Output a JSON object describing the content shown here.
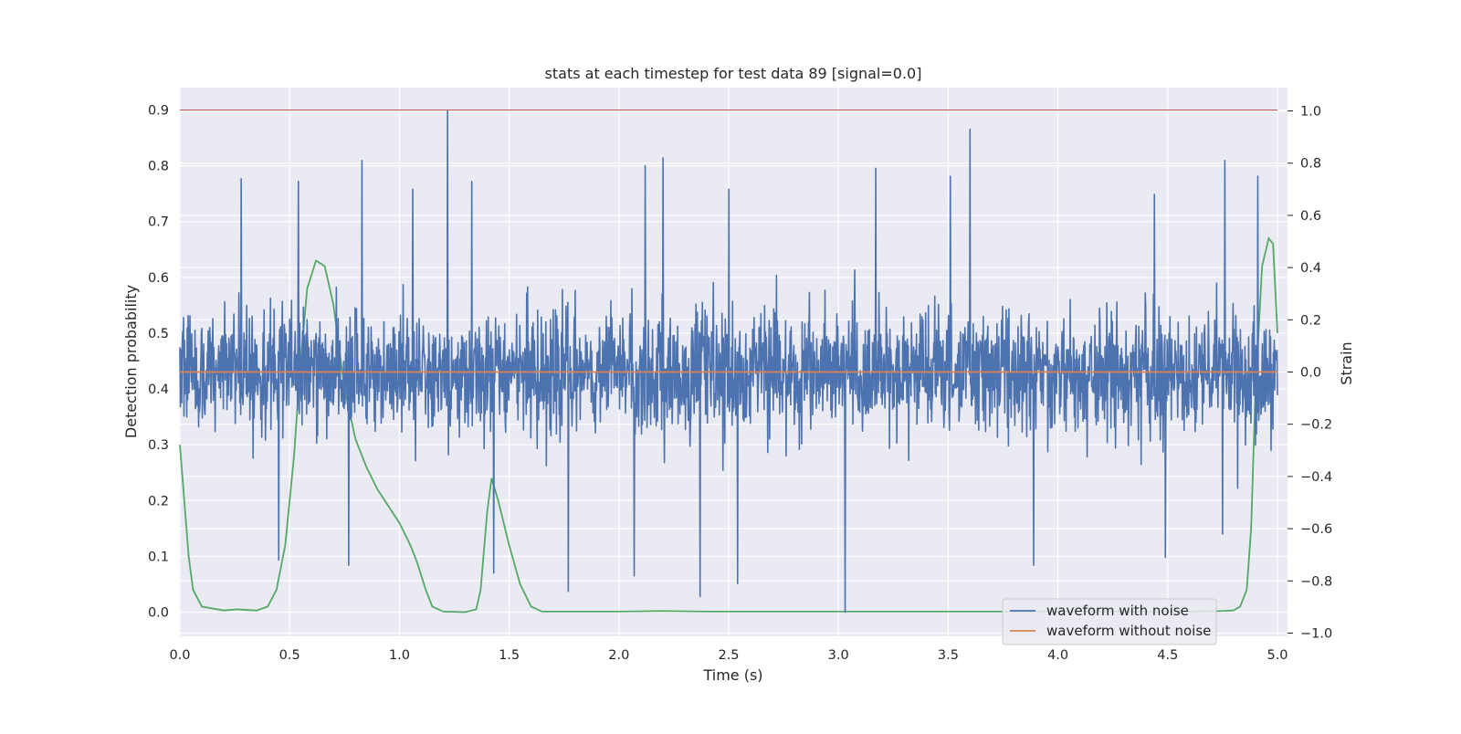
{
  "chart_data": {
    "type": "line",
    "title": "stats at each timestep for test data 89 [signal=0.0]",
    "xlabel": "Time (s)",
    "ylabel_left": "Detection probability",
    "ylabel_right": "Strain",
    "xlim": [
      0.0,
      5.0
    ],
    "ylim_left": [
      -0.04,
      0.943
    ],
    "ylim_right": [
      -1.0,
      1.05
    ],
    "xticks": [
      {
        "value": 0.0,
        "label": "0.0"
      },
      {
        "value": 0.5,
        "label": "0.5"
      },
      {
        "value": 1.0,
        "label": "1.0"
      },
      {
        "value": 1.5,
        "label": "1.5"
      },
      {
        "value": 2.0,
        "label": "2.0"
      },
      {
        "value": 2.5,
        "label": "2.5"
      },
      {
        "value": 3.0,
        "label": "3.0"
      },
      {
        "value": 3.5,
        "label": "3.5"
      },
      {
        "value": 4.0,
        "label": "4.0"
      },
      {
        "value": 4.5,
        "label": "4.5"
      },
      {
        "value": 5.0,
        "label": "5.0"
      }
    ],
    "yticks_left": [
      {
        "value": 0.0,
        "label": "0.0"
      },
      {
        "value": 0.1,
        "label": "0.1"
      },
      {
        "value": 0.2,
        "label": "0.2"
      },
      {
        "value": 0.3,
        "label": "0.3"
      },
      {
        "value": 0.4,
        "label": "0.4"
      },
      {
        "value": 0.5,
        "label": "0.5"
      },
      {
        "value": 0.6,
        "label": "0.6"
      },
      {
        "value": 0.7,
        "label": "0.7"
      },
      {
        "value": 0.8,
        "label": "0.8"
      },
      {
        "value": 0.9,
        "label": "0.9"
      }
    ],
    "yticks_right": [
      {
        "value": 1.0,
        "label": "1.0"
      },
      {
        "value": 0.8,
        "label": "0.8"
      },
      {
        "value": 0.6,
        "label": "0.6"
      },
      {
        "value": 0.4,
        "label": "0.4"
      },
      {
        "value": 0.2,
        "label": "0.2"
      },
      {
        "value": 0.0,
        "label": "0.0"
      },
      {
        "value": -0.2,
        "label": "−0.2"
      },
      {
        "value": -0.4,
        "label": "−0.4"
      },
      {
        "value": -0.6,
        "label": "−0.6"
      },
      {
        "value": -0.8,
        "label": "−0.8"
      },
      {
        "value": -1.0,
        "label": "−1.0"
      }
    ],
    "grid": true,
    "legend_position": "lower-right",
    "series": [
      {
        "name": "waveform with noise",
        "axis": "right",
        "color": "#4c72b0",
        "style": "noise",
        "n_points": 2400,
        "typical_range": [
          -0.35,
          0.35
        ],
        "peaks": [
          {
            "x": 1.22,
            "y": 1.0
          },
          {
            "x": 3.6,
            "y": 0.93
          },
          {
            "x": 2.2,
            "y": 0.82
          },
          {
            "x": 0.83,
            "y": 0.81
          },
          {
            "x": 4.76,
            "y": 0.81
          },
          {
            "x": 2.12,
            "y": 0.79
          },
          {
            "x": 3.17,
            "y": 0.78
          },
          {
            "x": 3.51,
            "y": 0.75
          },
          {
            "x": 0.28,
            "y": 0.74
          },
          {
            "x": 0.54,
            "y": 0.73
          },
          {
            "x": 4.91,
            "y": 0.75
          },
          {
            "x": 1.33,
            "y": 0.73
          },
          {
            "x": 1.06,
            "y": 0.7
          },
          {
            "x": 2.5,
            "y": 0.7
          },
          {
            "x": 4.44,
            "y": 0.68
          }
        ],
        "troughs": [
          {
            "x": 3.03,
            "y": -0.92
          },
          {
            "x": 2.37,
            "y": -0.86
          },
          {
            "x": 2.54,
            "y": -0.81
          },
          {
            "x": 1.77,
            "y": -0.84
          },
          {
            "x": 2.07,
            "y": -0.78
          },
          {
            "x": 0.77,
            "y": -0.74
          },
          {
            "x": 1.43,
            "y": -0.77
          },
          {
            "x": 3.89,
            "y": -0.74
          },
          {
            "x": 4.49,
            "y": -0.71
          },
          {
            "x": 0.45,
            "y": -0.72
          },
          {
            "x": 4.75,
            "y": -0.62
          }
        ]
      },
      {
        "name": "waveform without noise",
        "axis": "right",
        "color": "#dd8452",
        "x": [
          0.0,
          5.0
        ],
        "y": [
          0.0,
          0.0
        ]
      },
      {
        "name": "",
        "axis": "left",
        "color": "#55a868",
        "x": [
          0.0,
          0.02,
          0.04,
          0.06,
          0.1,
          0.2,
          0.26,
          0.35,
          0.4,
          0.44,
          0.48,
          0.52,
          0.55,
          0.58,
          0.62,
          0.66,
          0.7,
          0.75,
          0.8,
          0.85,
          0.9,
          0.95,
          1.0,
          1.05,
          1.08,
          1.12,
          1.15,
          1.2,
          1.3,
          1.35,
          1.37,
          1.4,
          1.42,
          1.45,
          1.5,
          1.55,
          1.6,
          1.65,
          2.0,
          2.2,
          2.4,
          3.0,
          4.0,
          4.6,
          4.75,
          4.8,
          4.83,
          4.86,
          4.88,
          4.9,
          4.93,
          4.96,
          4.98,
          5.0
        ],
        "y": [
          0.3,
          0.2,
          0.1,
          0.04,
          0.01,
          0.003,
          0.005,
          0.003,
          0.01,
          0.04,
          0.12,
          0.28,
          0.45,
          0.58,
          0.63,
          0.62,
          0.55,
          0.4,
          0.31,
          0.26,
          0.22,
          0.19,
          0.16,
          0.12,
          0.09,
          0.04,
          0.01,
          0.001,
          0.0,
          0.005,
          0.04,
          0.18,
          0.24,
          0.2,
          0.12,
          0.05,
          0.01,
          0.001,
          0.001,
          0.002,
          0.001,
          0.001,
          0.001,
          0.001,
          0.002,
          0.003,
          0.01,
          0.04,
          0.15,
          0.4,
          0.62,
          0.67,
          0.66,
          0.5
        ]
      },
      {
        "name": "",
        "axis": "left",
        "color": "#c44e52",
        "x": [
          0.0,
          5.0
        ],
        "y": [
          0.9,
          0.9
        ]
      }
    ]
  }
}
